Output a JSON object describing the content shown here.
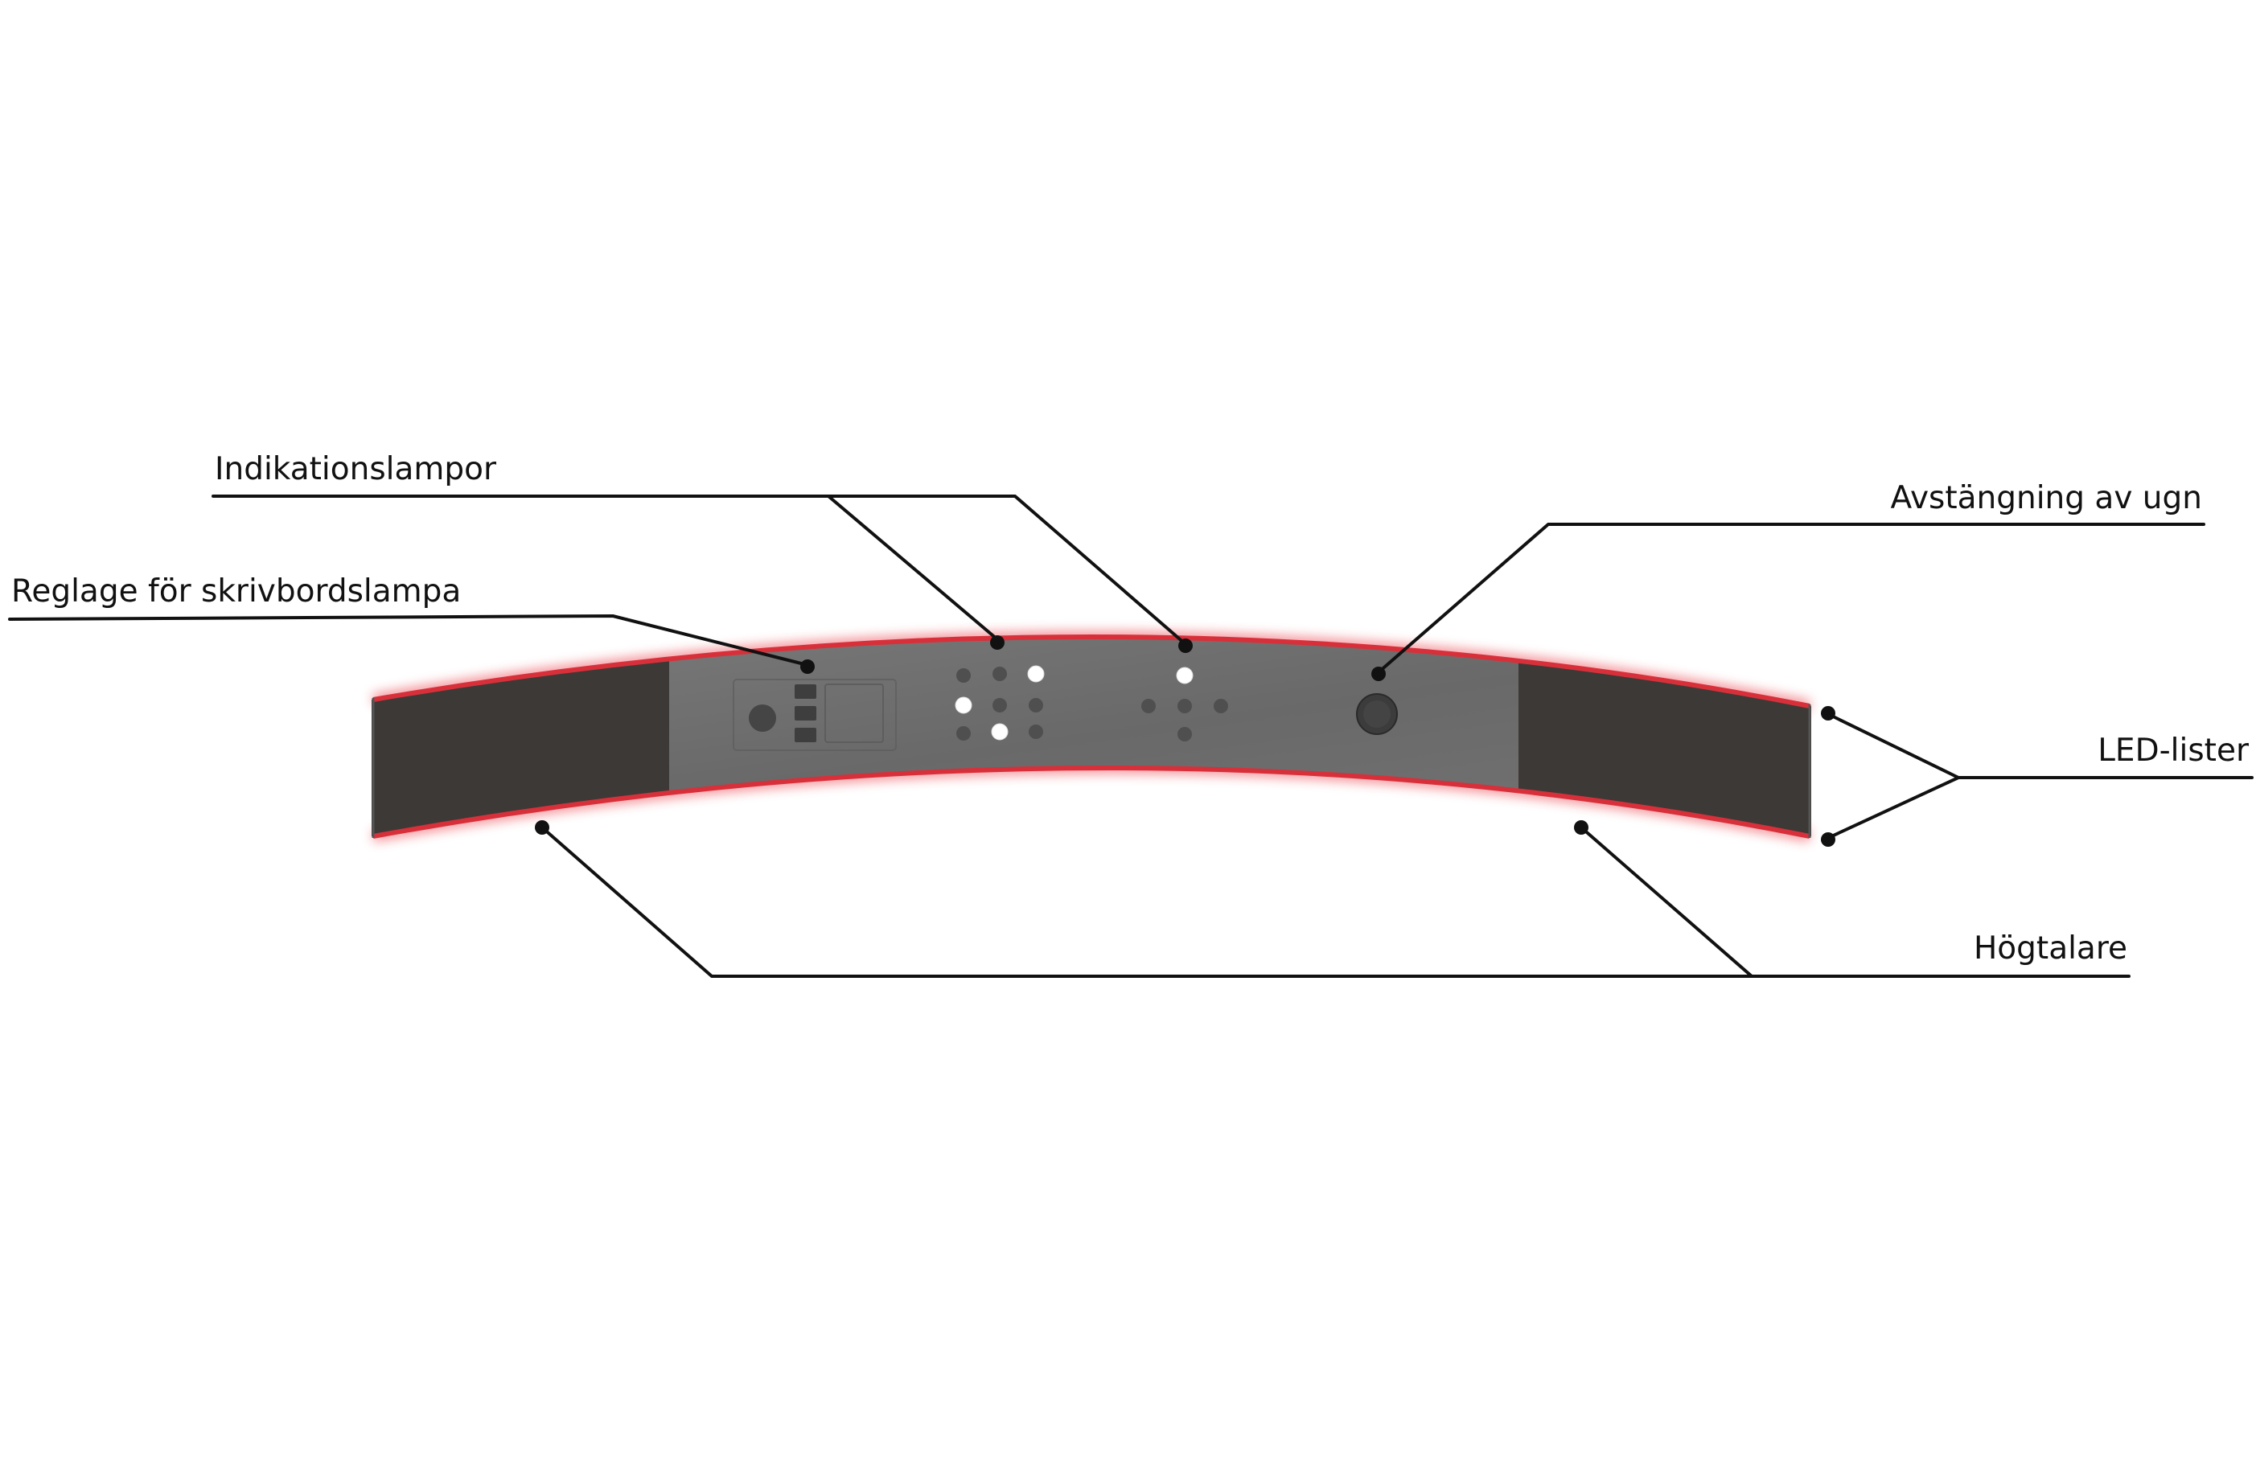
{
  "labels": {
    "indication_lamps": "Indikationslampor",
    "desk_lamp_control": "Reglage för skrivbordslampa",
    "oven_shutoff": "Avstängning av ugn",
    "led_strips": "LED-lister",
    "speakers": "Högtalare"
  },
  "indicator_lamps": {
    "left_cluster_lit": [
      false,
      false,
      true,
      true,
      false,
      false,
      false,
      true,
      false
    ],
    "right_cluster_lit": [
      true,
      false,
      false,
      false,
      false
    ]
  },
  "colors": {
    "led_glow": "#e8323c",
    "panel": "#6f6f6f",
    "speaker_fabric": "#3d3936",
    "lamp_lit": "#ffffff",
    "lamp_off": "#4f4f4f",
    "text": "#111111"
  }
}
